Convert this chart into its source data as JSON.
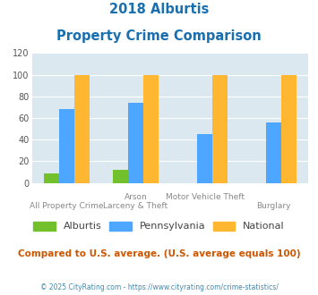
{
  "title_line1": "2018 Alburtis",
  "title_line2": "Property Crime Comparison",
  "series": {
    "Alburtis": [
      9,
      12,
      0,
      0
    ],
    "Pennsylvania": [
      68,
      74,
      45,
      56
    ],
    "National": [
      100,
      100,
      100,
      100
    ]
  },
  "colors": {
    "Alburtis": "#72c02c",
    "Pennsylvania": "#4da6ff",
    "National": "#ffb732"
  },
  "ylim": [
    0,
    120
  ],
  "yticks": [
    0,
    20,
    40,
    60,
    80,
    100,
    120
  ],
  "title_color": "#1a6faf",
  "bg_color": "#dce8f0",
  "subtitle_note": "Compared to U.S. average. (U.S. average equals 100)",
  "footer": "© 2025 CityRating.com - https://www.cityrating.com/crime-statistics/",
  "subtitle_color": "#cc5500",
  "footer_color": "#4488aa",
  "bar_width": 0.22,
  "tick_row1": [
    "",
    "Arson",
    "Motor Vehicle Theft",
    ""
  ],
  "tick_row2": [
    "All Property Crime",
    "Larceny & Theft",
    "",
    "Burglary"
  ]
}
